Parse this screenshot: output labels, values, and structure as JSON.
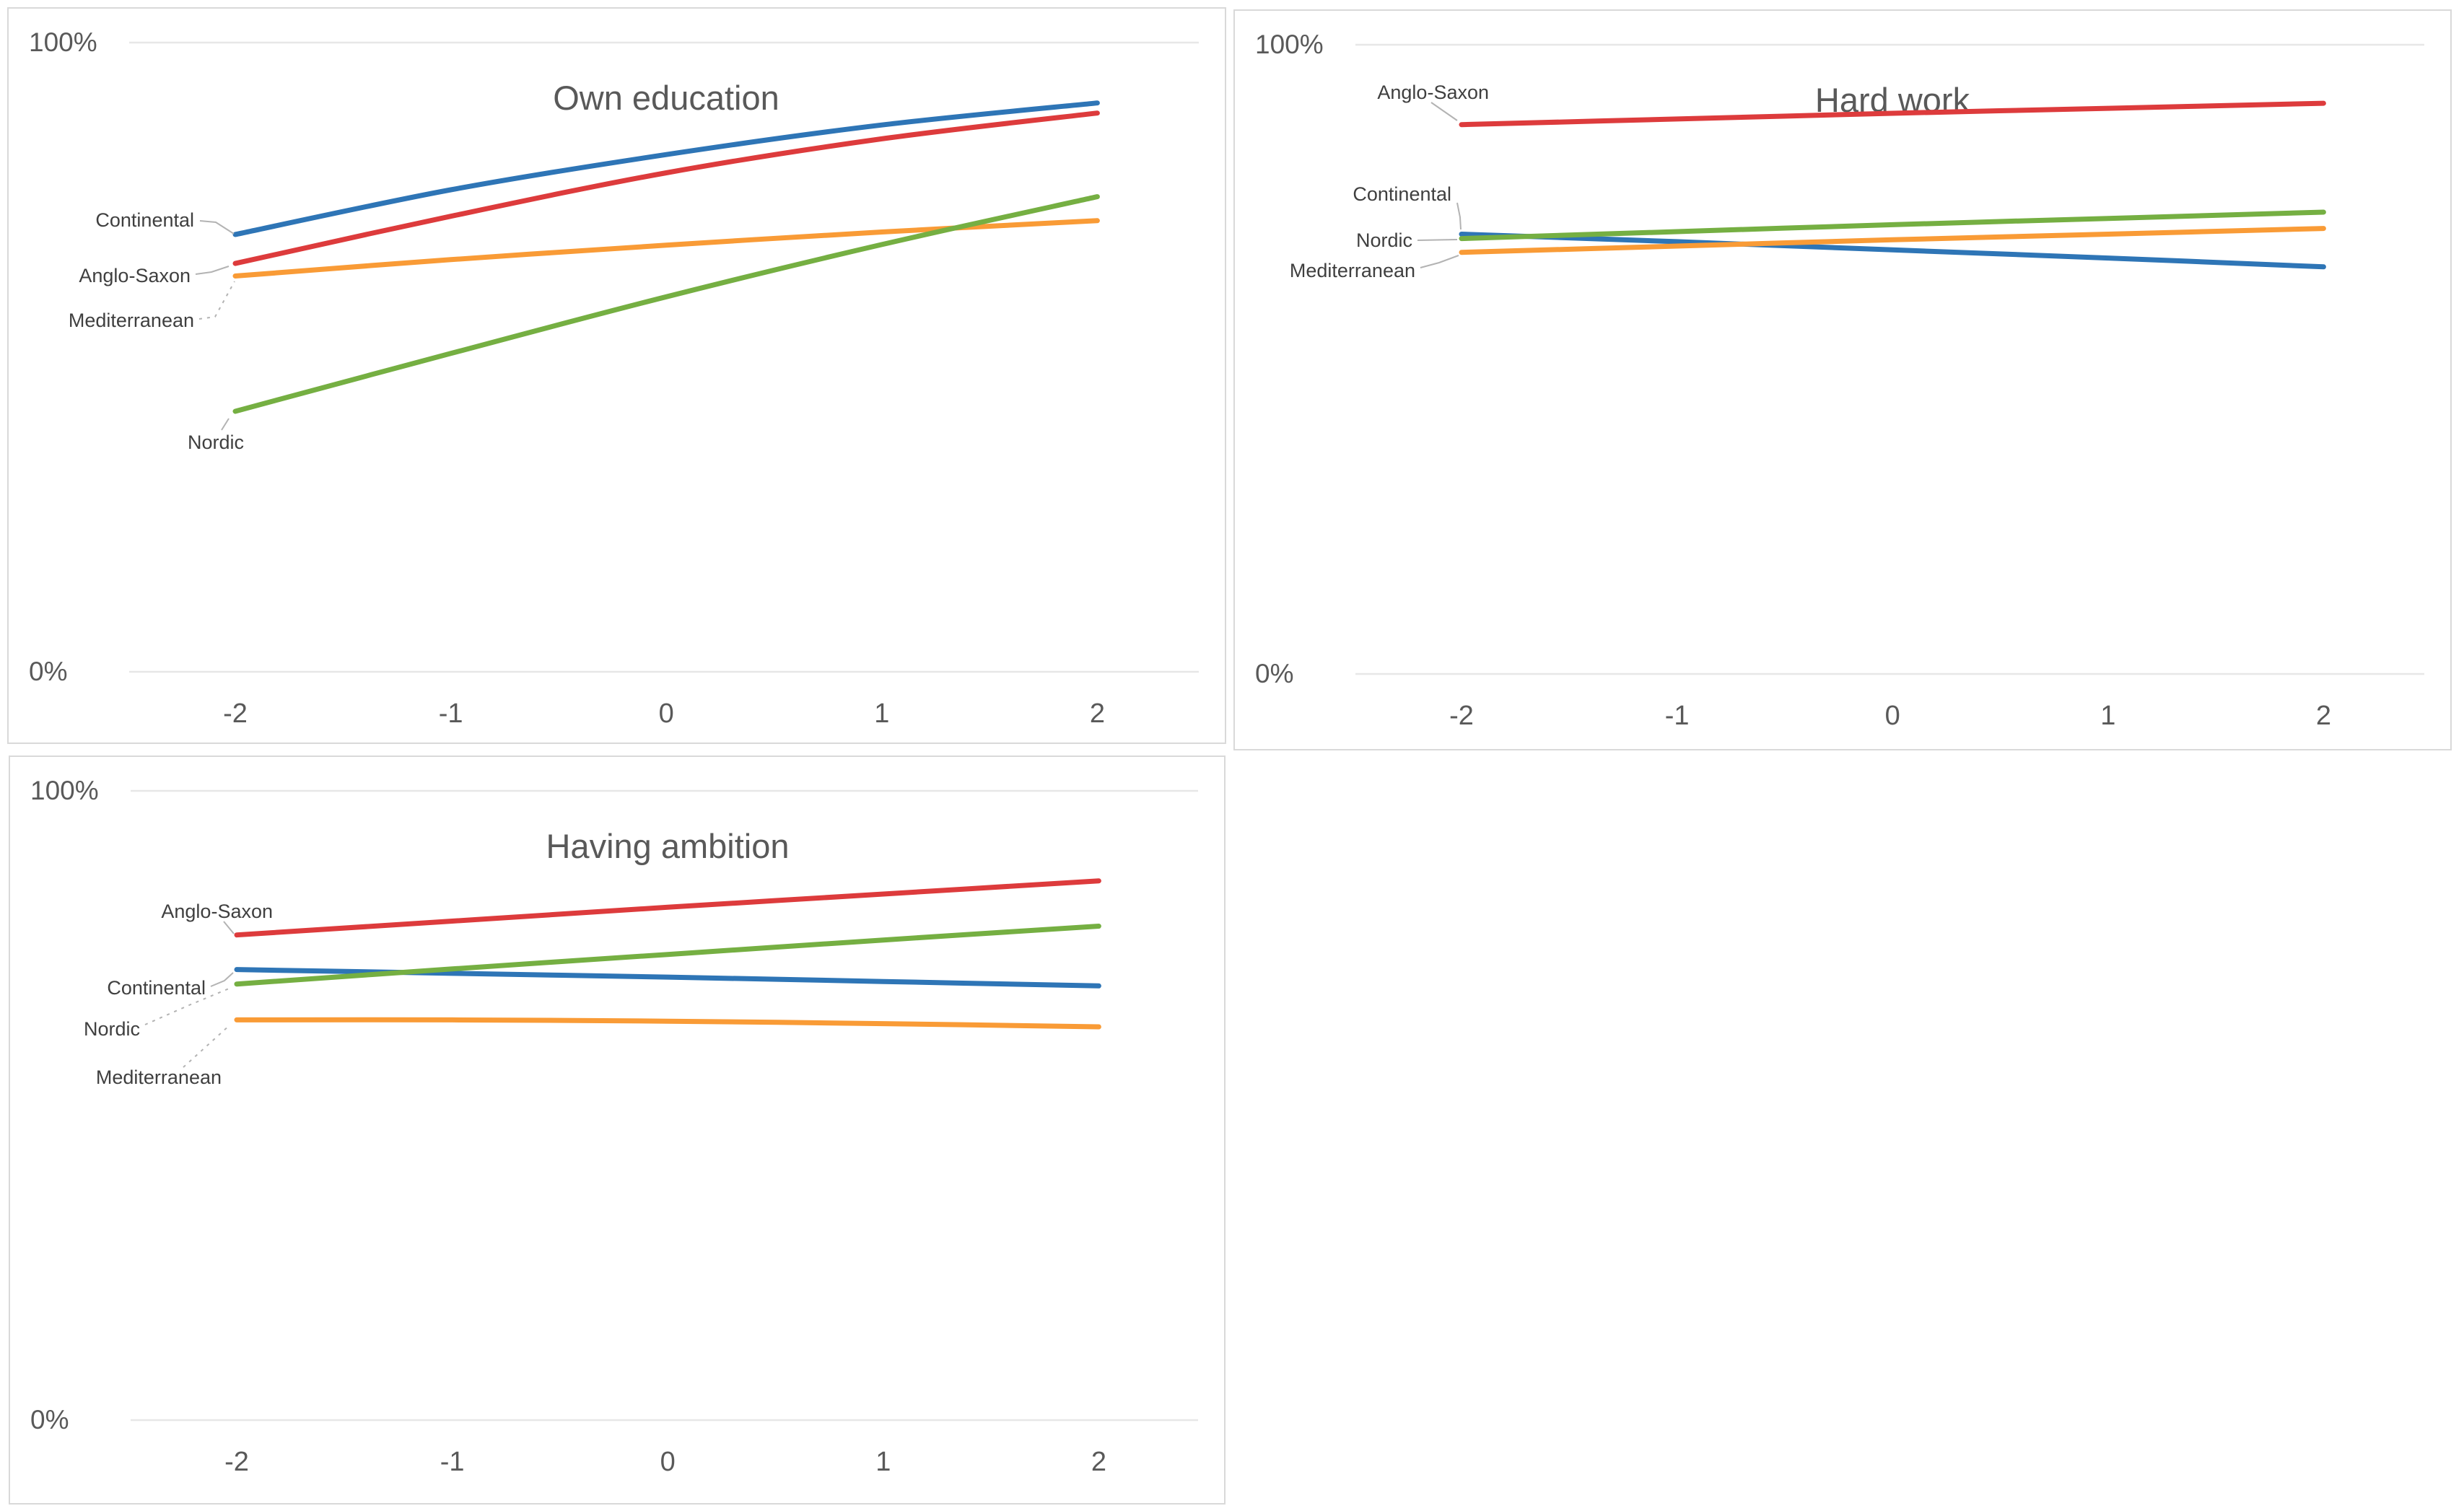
{
  "page": {
    "background_color": "#ffffff",
    "panel_border_color": "#D9D9D9",
    "gridline_color": "#E7E7E7",
    "axis_text_color": "#595959",
    "series_label_color": "#3F3F3F",
    "leader_line_color": "#B3B3B3"
  },
  "chart_data": [
    {
      "type": "line",
      "title": "Own education",
      "x": [
        -2,
        -1,
        0,
        1,
        2
      ],
      "x_tick_labels": [
        "-2",
        "-1",
        "0",
        "1",
        "2"
      ],
      "ylim": [
        0,
        100
      ],
      "y_tick_labels": [
        "0%",
        "100%"
      ],
      "grid": "horizontal min/max only",
      "legend": "inline series labels at line start",
      "series": [
        {
          "name": "Continental",
          "color": "#2E75B6",
          "values": [
            69.5,
            76.6,
            82.2,
            86.9,
            90.4
          ]
        },
        {
          "name": "Anglo-Saxon",
          "color": "#DD3B3C",
          "values": [
            64.9,
            72.4,
            79.3,
            84.7,
            88.8
          ]
        },
        {
          "name": "Mediterranean",
          "color": "#F99B36",
          "values": [
            62.9,
            65.5,
            67.8,
            69.9,
            71.7
          ]
        },
        {
          "name": "Nordic",
          "color": "#75AF42",
          "values": [
            41.4,
            50.6,
            59.6,
            67.9,
            75.5
          ]
        }
      ]
    },
    {
      "type": "line",
      "title": "Hard work",
      "x": [
        -2,
        -1,
        0,
        1,
        2
      ],
      "x_tick_labels": [
        "-2",
        "-1",
        "0",
        "1",
        "2"
      ],
      "ylim": [
        0,
        100
      ],
      "y_tick_labels": [
        "0%",
        "100%"
      ],
      "grid": "horizontal min/max only",
      "legend": "inline series labels at line start",
      "series": [
        {
          "name": "Continental",
          "color": "#2E75B6",
          "values": [
            69.9,
            68.7,
            67.4,
            66.1,
            64.7
          ]
        },
        {
          "name": "Anglo-Saxon",
          "color": "#DD3B3C",
          "values": [
            87.3,
            88.2,
            89.1,
            89.9,
            90.7
          ]
        },
        {
          "name": "Mediterranean",
          "color": "#F99B36",
          "values": [
            67.0,
            68.0,
            69.0,
            69.9,
            70.8
          ]
        },
        {
          "name": "Nordic",
          "color": "#75AF42",
          "values": [
            69.2,
            70.3,
            71.4,
            72.4,
            73.4
          ]
        }
      ]
    },
    {
      "type": "line",
      "title": "Having ambition",
      "x": [
        -2,
        -1,
        0,
        1,
        2
      ],
      "x_tick_labels": [
        "-2",
        "-1",
        "0",
        "1",
        "2"
      ],
      "ylim": [
        0,
        100
      ],
      "y_tick_labels": [
        "0%",
        "100%"
      ],
      "grid": "horizontal min/max only",
      "legend": "inline series labels at line start",
      "series": [
        {
          "name": "Continental",
          "color": "#2E75B6",
          "values": [
            71.6,
            71.0,
            70.4,
            69.7,
            69.0
          ]
        },
        {
          "name": "Anglo-Saxon",
          "color": "#DD3B3C",
          "values": [
            77.1,
            79.3,
            81.5,
            83.6,
            85.7
          ]
        },
        {
          "name": "Mediterranean",
          "color": "#F99B36",
          "values": [
            63.6,
            63.6,
            63.4,
            63.0,
            62.5
          ]
        },
        {
          "name": "Nordic",
          "color": "#75AF42",
          "values": [
            69.3,
            71.7,
            74.0,
            76.3,
            78.5
          ]
        }
      ]
    }
  ]
}
